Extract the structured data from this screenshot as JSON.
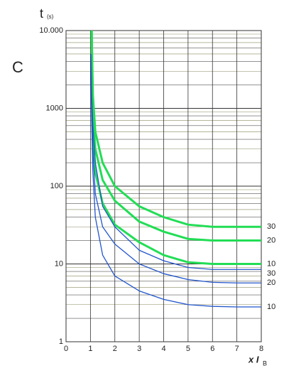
{
  "chart_data": {
    "type": "line",
    "title": "C",
    "y_label": "t",
    "y_label_sub": "(s)",
    "x_label": "x I",
    "x_label_sub": "B",
    "x": [
      1.02,
      1.05,
      1.1,
      1.2,
      1.5,
      2,
      3,
      4,
      5,
      6,
      7,
      8
    ],
    "series": [
      {
        "name": "30",
        "color": "#22dd55",
        "width": 3,
        "values": [
          null,
          10000,
          1500,
          500,
          200,
          100,
          55,
          40,
          32,
          30,
          30,
          30
        ]
      },
      {
        "name": "20",
        "color": "#22dd55",
        "width": 3,
        "values": [
          null,
          10000,
          800,
          300,
          120,
          65,
          35,
          26,
          21,
          20,
          20,
          20
        ]
      },
      {
        "name": "10",
        "color": "#22dd55",
        "width": 3,
        "values": [
          null,
          10000,
          600,
          150,
          60,
          32,
          19,
          13,
          10.5,
          10,
          10,
          10
        ]
      },
      {
        "name": "30",
        "color": "#2255cc",
        "width": 1.3,
        "values": [
          5000,
          1500,
          600,
          200,
          55,
          30,
          15,
          11,
          9,
          8.5,
          8.5,
          8.5
        ]
      },
      {
        "name": "20",
        "color": "#2255cc",
        "width": 1.3,
        "values": [
          4000,
          1000,
          300,
          80,
          30,
          18,
          10,
          7.5,
          6.3,
          5.8,
          5.7,
          5.7
        ]
      },
      {
        "name": "10",
        "color": "#2255cc",
        "width": 1.3,
        "values": [
          3000,
          700,
          150,
          40,
          13,
          7,
          4.5,
          3.5,
          3,
          2.85,
          2.8,
          2.8
        ]
      }
    ],
    "xlim": [
      0,
      8
    ],
    "xticks": [
      0,
      1,
      2,
      3,
      4,
      5,
      6,
      7,
      8
    ],
    "ylim": [
      1,
      10000
    ],
    "log_y": true,
    "yticks": [
      1,
      10,
      100,
      1000,
      {
        "value": 10000,
        "label": "10.000"
      }
    ],
    "grid": true
  }
}
